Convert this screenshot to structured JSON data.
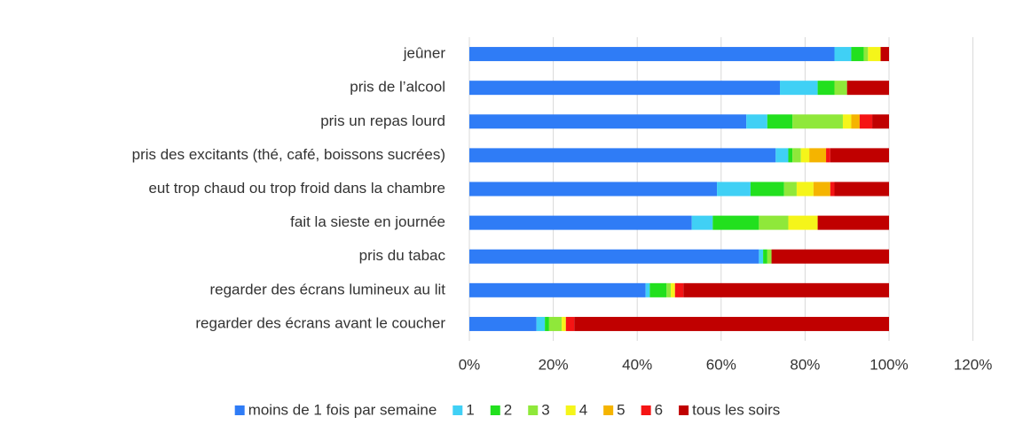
{
  "chart_data": {
    "type": "stacked-bar-horizontal",
    "categories": [
      "jeûner",
      "pris de l’alcool",
      "pris un repas lourd",
      "pris des excitants (thé, café, boissons sucrées)",
      "eut trop chaud ou trop froid dans la chambre",
      "fait la sieste en journée",
      "pris du tabac",
      "regarder des écrans lumineux au lit",
      "regarder des écrans avant le coucher"
    ],
    "series": [
      {
        "name": "moins de 1 fois par semaine",
        "color": "#2f7cf6",
        "values": [
          87,
          74,
          66,
          73,
          59,
          53,
          69,
          42,
          16
        ]
      },
      {
        "name": "1",
        "color": "#40d0f5",
        "values": [
          4,
          9,
          5,
          3,
          8,
          5,
          1,
          1,
          2
        ]
      },
      {
        "name": "2",
        "color": "#22e01e",
        "values": [
          3,
          4,
          6,
          1,
          8,
          11,
          1,
          4,
          1
        ]
      },
      {
        "name": "3",
        "color": "#8fe83a",
        "values": [
          1,
          3,
          12,
          2,
          3,
          7,
          1,
          1,
          3
        ]
      },
      {
        "name": "4",
        "color": "#f5f51a",
        "values": [
          3,
          0,
          2,
          2,
          4,
          7,
          0,
          1,
          1
        ]
      },
      {
        "name": "5",
        "color": "#f5b400",
        "values": [
          0,
          0,
          2,
          4,
          4,
          0,
          0,
          0,
          0
        ]
      },
      {
        "name": "6",
        "color": "#f51414",
        "values": [
          0,
          0,
          3,
          1,
          1,
          0,
          0,
          2,
          2
        ]
      },
      {
        "name": "tous les soirs",
        "color": "#c00000",
        "values": [
          2,
          10,
          4,
          14,
          13,
          17,
          28,
          49,
          75
        ]
      }
    ],
    "xlim": [
      0,
      120
    ],
    "xticks": [
      {
        "value": 0,
        "label": "0%"
      },
      {
        "value": 20,
        "label": "20%"
      },
      {
        "value": 40,
        "label": "40%"
      },
      {
        "value": 60,
        "label": "60%"
      },
      {
        "value": 80,
        "label": "80%"
      },
      {
        "value": 100,
        "label": "100%"
      },
      {
        "value": 120,
        "label": "120%"
      }
    ],
    "grid": true,
    "legend": "bottom"
  }
}
